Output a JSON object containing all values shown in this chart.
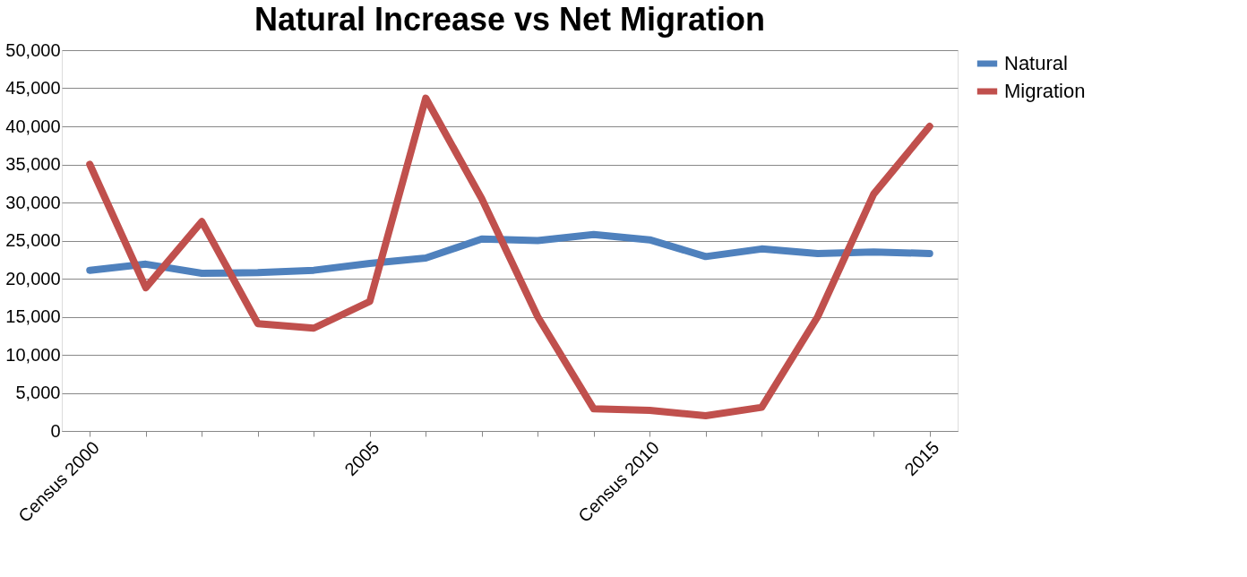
{
  "chart_data": {
    "type": "line",
    "title": "Natural Increase vs Net Migration",
    "categories": [
      "Census 2000",
      null,
      null,
      null,
      null,
      "2005",
      null,
      null,
      null,
      null,
      "Census 2010",
      null,
      null,
      null,
      null,
      "2015"
    ],
    "series": [
      {
        "name": "Natural",
        "color": "#4f81bd",
        "values": [
          21100,
          21900,
          20700,
          20800,
          21100,
          22000,
          22700,
          25200,
          25000,
          25800,
          25100,
          22900,
          23900,
          23300,
          23500,
          23300
        ]
      },
      {
        "name": "Migration",
        "color": "#c0504d",
        "values": [
          35000,
          18800,
          27500,
          14100,
          13500,
          17000,
          43700,
          30500,
          15000,
          2900,
          2700,
          2000,
          3100,
          15000,
          31100,
          40000
        ]
      }
    ],
    "ylim": [
      0,
      50000
    ],
    "yticks": [
      0,
      {
        "value": 5000,
        "label": "5,000"
      },
      {
        "value": 10000,
        "label": "10,000"
      },
      {
        "value": 15000,
        "label": "15,000"
      },
      {
        "value": 20000,
        "label": "20,000"
      },
      {
        "value": 25000,
        "label": "25,000"
      },
      {
        "value": 30000,
        "label": "30,000"
      },
      {
        "value": 35000,
        "label": "35,000"
      },
      {
        "value": 40000,
        "label": "40,000"
      },
      {
        "value": 45000,
        "label": "45,000"
      },
      {
        "value": 50000,
        "label": "50,000"
      }
    ],
    "grid": "y",
    "legend": "right",
    "marker": "none",
    "line_style": "solid"
  }
}
